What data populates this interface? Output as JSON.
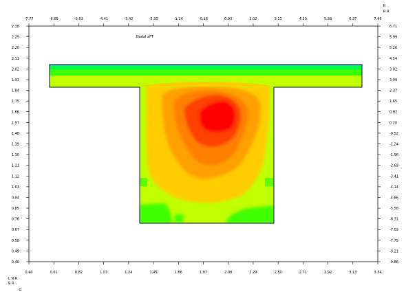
{
  "chart_data": {
    "type": "heatmap",
    "title": "Nodal aFT",
    "left_axis": {
      "ticks": [
        "0.40",
        "0.49",
        "0.58",
        "0.67",
        "0.76",
        "0.85",
        "0.94",
        "1.03",
        "1.12",
        "1.21",
        "1.30",
        "1.39",
        "1.48",
        "1.57",
        "1.66",
        "1.75",
        "1.84",
        "1.93",
        "2.02",
        "2.11",
        "2.20",
        "2.29",
        "2.38"
      ],
      "range": [
        0.4,
        2.38
      ]
    },
    "right_axis": {
      "label_lines": [
        "R",
        "R R"
      ],
      "ticks": [
        "-9.86",
        "-9.21",
        "-7.75",
        "-7.03",
        "-6.31",
        "-5.58",
        "-4.86",
        "-4.14",
        "-3.41",
        "-2.69",
        "-1.96",
        "-1.24",
        "-0.52",
        "0.20",
        "0.92",
        "1.65",
        "2.37",
        "3.09",
        "3.82",
        "4.54",
        "5.26",
        "5.99",
        "6.71"
      ],
      "range": [
        -9.86,
        6.71
      ]
    },
    "bottom_axis": {
      "ticks": [
        "0.40",
        "0.61",
        "0.82",
        "1.03",
        "1.24",
        "1.45",
        "1.66",
        "1.87",
        "2.08",
        "2.29",
        "2.50",
        "2.71",
        "2.92",
        "3.13",
        "3.34"
      ],
      "range": [
        0.4,
        3.34
      ]
    },
    "top_axis": {
      "ticks": [
        "-7.77",
        "-6.65",
        "-5.53",
        "-4.41",
        "-3.42",
        "-2.30",
        "-1.24",
        "-0.18",
        "0.93",
        "2.02",
        "3.11",
        "4.20",
        "5.28",
        "6.37",
        "7.46"
      ],
      "range": [
        -7.77,
        7.46
      ]
    },
    "corner_label_lines": [
      "L N R",
      "R R",
      "R"
    ],
    "colors": {
      "green": "#00ff40",
      "bright_green": "#40ff00",
      "yellow_green": "#bfff00",
      "amber": "#ffcc00",
      "orange_amber": "#ffa000",
      "orange": "#ff8000",
      "orange_red": "#ff4000",
      "red": "#ff0000",
      "outline": "#000080"
    },
    "shape": {
      "flange": {
        "x": [
          0.58,
          3.22
        ],
        "y": [
          1.89,
          2.07
        ]
      },
      "web": {
        "x": [
          1.35,
          2.54
        ],
        "y": [
          0.72,
          1.89
        ]
      }
    }
  }
}
